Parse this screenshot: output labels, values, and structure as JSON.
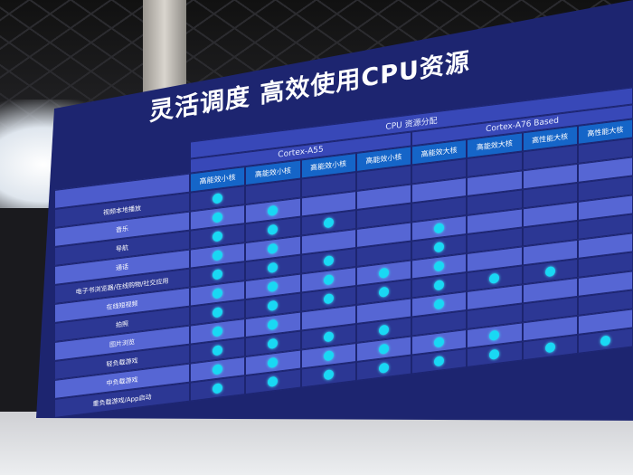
{
  "slide": {
    "title": "灵活调度 高效使用CPU资源",
    "group_header": "CPU 资源分配",
    "cluster_a55": "Cortex-A55",
    "cluster_a76": "Cortex-A76 Based",
    "columns": [
      "高能效小核",
      "高能效小核",
      "高能效小核",
      "高能效小核",
      "高能效大核",
      "高能效大核",
      "高性能大核",
      "高性能大核"
    ],
    "rows": [
      {
        "label": "视频本地播放",
        "cores": [
          1,
          0,
          0,
          0,
          0,
          0,
          0,
          0
        ]
      },
      {
        "label": "音乐",
        "cores": [
          1,
          1,
          0,
          0,
          0,
          0,
          0,
          0
        ]
      },
      {
        "label": "导航",
        "cores": [
          1,
          1,
          1,
          0,
          0,
          0,
          0,
          0
        ]
      },
      {
        "label": "通话",
        "cores": [
          1,
          1,
          0,
          0,
          1,
          0,
          0,
          0
        ]
      },
      {
        "label": "电子书浏览器/在线购物/社交应用",
        "cores": [
          1,
          1,
          1,
          0,
          1,
          0,
          0,
          0
        ]
      },
      {
        "label": "在线短视频",
        "cores": [
          1,
          1,
          1,
          1,
          1,
          0,
          0,
          0
        ]
      },
      {
        "label": "拍照",
        "cores": [
          1,
          1,
          1,
          1,
          1,
          1,
          1,
          0
        ]
      },
      {
        "label": "图片浏览",
        "cores": [
          1,
          1,
          0,
          0,
          1,
          0,
          0,
          0
        ]
      },
      {
        "label": "轻负载游戏",
        "cores": [
          1,
          1,
          1,
          1,
          0,
          0,
          0,
          0
        ]
      },
      {
        "label": "中负载游戏",
        "cores": [
          1,
          1,
          1,
          1,
          1,
          1,
          0,
          0
        ]
      },
      {
        "label": "重负载游戏/App启动",
        "cores": [
          1,
          1,
          1,
          1,
          1,
          1,
          1,
          1
        ]
      }
    ],
    "dot_color": "#19d8f4",
    "slide_color": "#1d2570"
  }
}
